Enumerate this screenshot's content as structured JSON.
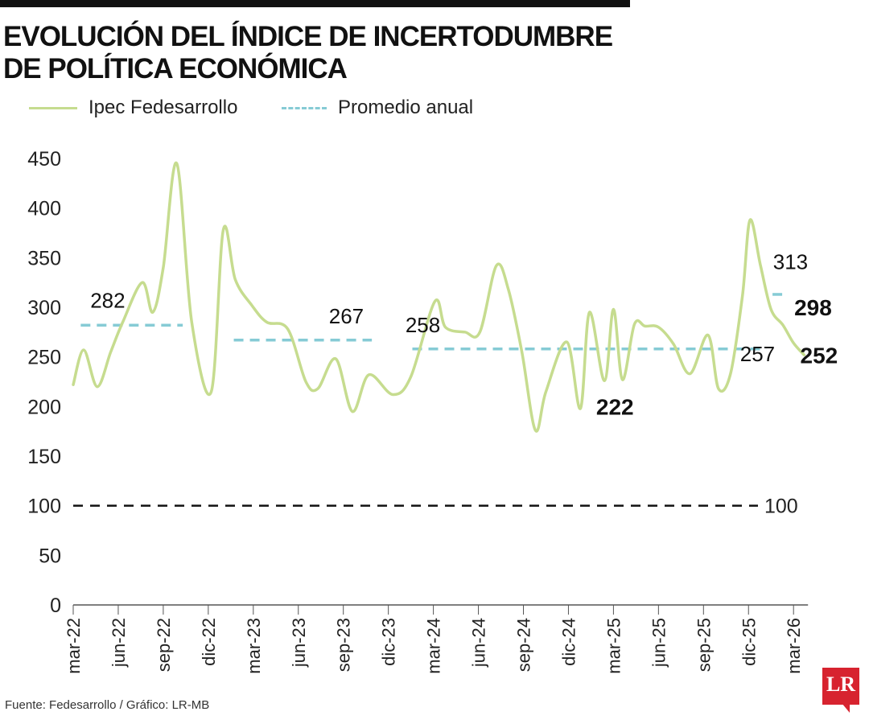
{
  "header": {
    "title": "EVOLUCIÓN DEL ÍNDICE DE INCERTODUMBRE DE POLÍTICA ECONÓMICA"
  },
  "legend": [
    {
      "label": "Ipec Fedesarrollo",
      "style": "solid",
      "color": "#c6dc8f"
    },
    {
      "label": "Promedio anual",
      "style": "dashed",
      "color": "#86cbd5"
    }
  ],
  "footer": {
    "source": "Fuente: Fedesarrollo / Gráfico: LR-MB",
    "logo_text": "LR"
  },
  "colors": {
    "line": "#c6dc8f",
    "average": "#86cbd5",
    "reference": "#111111",
    "brand": "#d7232f"
  },
  "chart_data": {
    "type": "line",
    "ylim": [
      0,
      450
    ],
    "yticks": [
      0,
      50,
      100,
      150,
      200,
      250,
      300,
      350,
      400,
      450
    ],
    "x_tick_labels": [
      "mar-22",
      "jun-22",
      "sep-22",
      "dic-22",
      "mar-23",
      "jun-23",
      "sep-23",
      "dic-23",
      "mar-24",
      "jun-24",
      "sep-24",
      "dic-24",
      "mar-25",
      "jun-25",
      "sep-25",
      "dic-25",
      "mar-26"
    ],
    "x_tick_positions": [
      0,
      3,
      6,
      9,
      12,
      15,
      18,
      21,
      24,
      27,
      30,
      33,
      36,
      39,
      42,
      45,
      48
    ],
    "grid": false,
    "series": [
      {
        "name": "Ipec Fedesarrollo",
        "x": [
          0,
          0.7,
          1.6,
          2.5,
          3.3,
          4.6,
          5.3,
          6.0,
          6.9,
          7.9,
          9.2,
          10.0,
          10.8,
          11.9,
          12.9,
          14.3,
          15.5,
          16.3,
          17.5,
          18.6,
          19.7,
          21.3,
          22.5,
          24.1,
          24.8,
          26.1,
          27.1,
          28.2,
          29.0,
          29.9,
          30.8,
          31.5,
          32.9,
          33.8,
          34.4,
          35.4,
          36.0,
          36.6,
          37.4,
          38.1,
          39.0,
          40.0,
          41.1,
          42.3,
          43.0,
          43.8,
          44.6,
          45.1,
          45.8,
          46.5,
          47.3,
          48.0,
          48.7
        ],
        "values": [
          222,
          257,
          220,
          255,
          285,
          325,
          295,
          340,
          445,
          285,
          215,
          378,
          328,
          302,
          285,
          278,
          225,
          218,
          248,
          195,
          232,
          212,
          230,
          306,
          280,
          275,
          275,
          342,
          318,
          255,
          176,
          215,
          265,
          198,
          295,
          226,
          298,
          227,
          283,
          281,
          280,
          263,
          233,
          272,
          218,
          233,
          312,
          388,
          342,
          298,
          282,
          264,
          252
        ]
      }
    ],
    "annual_averages": [
      {
        "year_label": "282",
        "value": 282,
        "x_start": 0.5,
        "x_end": 7.3
      },
      {
        "year_label": "267",
        "value": 267,
        "x_start": 10.7,
        "x_end": 19.9
      },
      {
        "year_label": "258",
        "value": 258,
        "x_start": 22.6,
        "x_end": 46.2
      },
      {
        "year_label": "257",
        "value": 257,
        "x_start": 23.0,
        "x_end": 46.2
      },
      {
        "year_label": "313",
        "value": 313,
        "x_start": 46.6,
        "x_end": 47.6
      }
    ],
    "reference_line": {
      "value": 100,
      "label": "100"
    },
    "annotations": [
      {
        "text": "282",
        "x": 2.3,
        "y": 307,
        "bold": false
      },
      {
        "text": "267",
        "x": 18.2,
        "y": 291,
        "bold": false
      },
      {
        "text": "258",
        "x": 23.3,
        "y": 282,
        "bold": false
      },
      {
        "text": "257",
        "x": 45.6,
        "y": 253,
        "bold": false
      },
      {
        "text": "313",
        "x": 47.8,
        "y": 346,
        "bold": false
      },
      {
        "text": "298",
        "x": 49.3,
        "y": 299,
        "bold": true
      },
      {
        "text": "252",
        "x": 49.7,
        "y": 251,
        "bold": true
      },
      {
        "text": "222",
        "x": 36.1,
        "y": 199,
        "bold": true
      }
    ]
  }
}
